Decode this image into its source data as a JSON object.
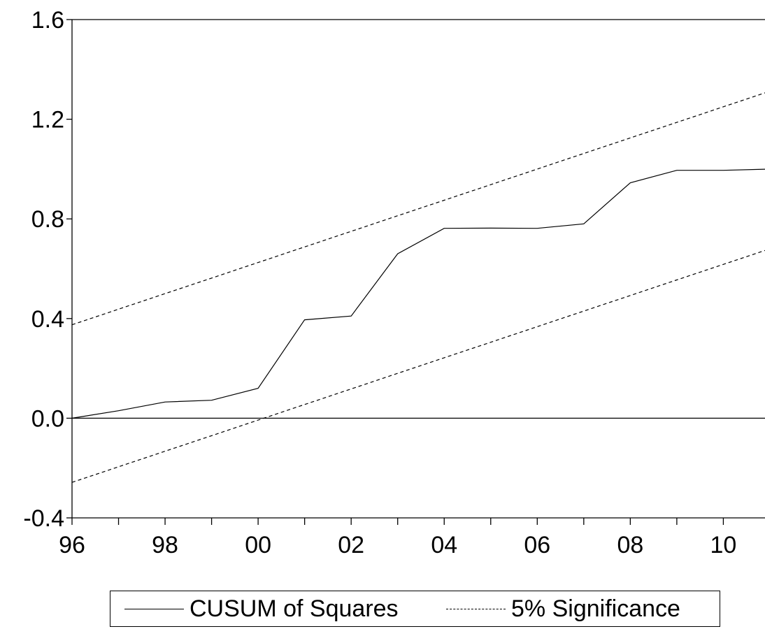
{
  "chart_data": {
    "type": "line",
    "x": [
      "96",
      "97",
      "98",
      "99",
      "00",
      "01",
      "02",
      "03",
      "04",
      "05",
      "06",
      "07",
      "08",
      "09",
      "10",
      "11"
    ],
    "x_tick_labels": [
      "96",
      "98",
      "00",
      "02",
      "04",
      "06",
      "08",
      "10"
    ],
    "y_tick_labels": [
      "1.6",
      "1.2",
      "0.8",
      "0.4",
      "0.0",
      "-0.4"
    ],
    "ylim": [
      -0.4,
      1.6
    ],
    "grid": false,
    "zero_line": true,
    "legend_position": "bottom",
    "series": [
      {
        "name": "CUSUM of Squares",
        "style": "solid",
        "color": "#000000",
        "values": [
          0.0,
          0.03,
          0.065,
          0.072,
          0.12,
          0.395,
          0.41,
          0.66,
          0.762,
          0.763,
          0.762,
          0.78,
          0.945,
          0.995,
          0.995,
          1.0
        ]
      },
      {
        "name": "5% Significance",
        "style": "dashed",
        "color": "#000000",
        "values": [
          0.375,
          0.4375,
          0.5,
          0.5625,
          0.625,
          0.6875,
          0.75,
          0.8125,
          0.875,
          0.9375,
          1.0,
          1.0625,
          1.125,
          1.1875,
          1.25,
          1.3125
        ]
      },
      {
        "name": "",
        "style": "dashed",
        "color": "#000000",
        "values": [
          -0.2575,
          -0.195,
          -0.1325,
          -0.07,
          -0.0075,
          0.055,
          0.1175,
          0.18,
          0.2425,
          0.305,
          0.3675,
          0.43,
          0.4925,
          0.555,
          0.6175,
          0.68
        ]
      }
    ]
  },
  "legend": {
    "cusum_label": "CUSUM of Squares",
    "significance_label": "5% Significance"
  }
}
